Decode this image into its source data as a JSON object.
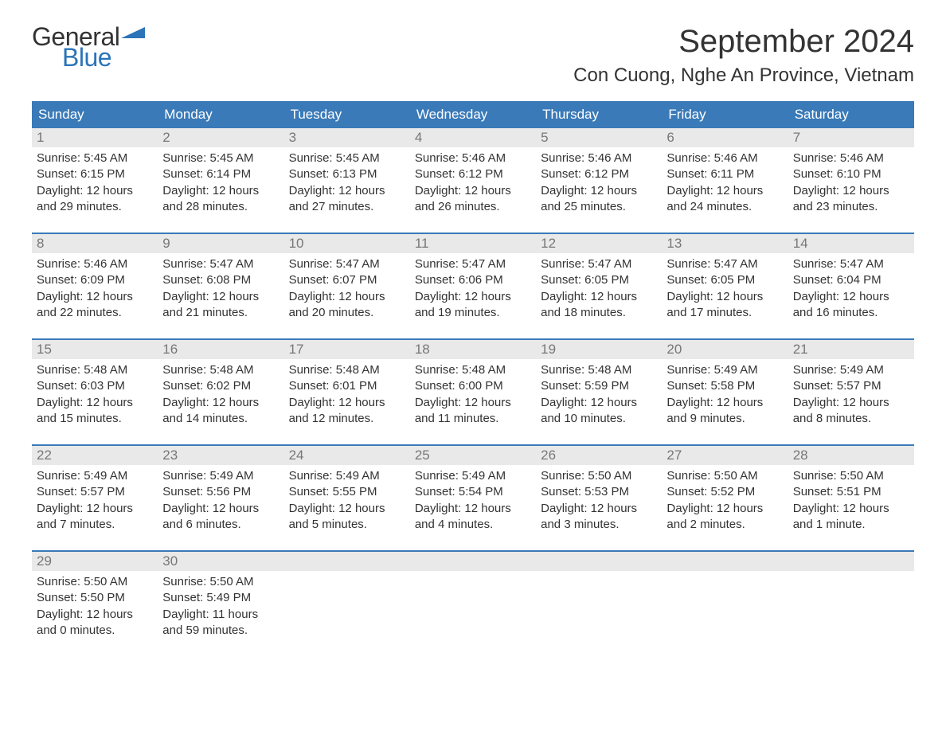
{
  "logo": {
    "text_general": "General",
    "text_blue": "Blue",
    "flag_color": "#2b74b8"
  },
  "title": "September 2024",
  "location": "Con Cuong, Nghe An Province, Vietnam",
  "colors": {
    "header_bg": "#3a7ab8",
    "header_text": "#ffffff",
    "day_bar_bg": "#e9e9e9",
    "day_num_text": "#777777",
    "body_text": "#333333",
    "week_border": "#3a7ab8",
    "background": "#ffffff"
  },
  "day_headers": [
    "Sunday",
    "Monday",
    "Tuesday",
    "Wednesday",
    "Thursday",
    "Friday",
    "Saturday"
  ],
  "weeks": [
    [
      {
        "num": "1",
        "sunrise": "Sunrise: 5:45 AM",
        "sunset": "Sunset: 6:15 PM",
        "daylight1": "Daylight: 12 hours",
        "daylight2": "and 29 minutes."
      },
      {
        "num": "2",
        "sunrise": "Sunrise: 5:45 AM",
        "sunset": "Sunset: 6:14 PM",
        "daylight1": "Daylight: 12 hours",
        "daylight2": "and 28 minutes."
      },
      {
        "num": "3",
        "sunrise": "Sunrise: 5:45 AM",
        "sunset": "Sunset: 6:13 PM",
        "daylight1": "Daylight: 12 hours",
        "daylight2": "and 27 minutes."
      },
      {
        "num": "4",
        "sunrise": "Sunrise: 5:46 AM",
        "sunset": "Sunset: 6:12 PM",
        "daylight1": "Daylight: 12 hours",
        "daylight2": "and 26 minutes."
      },
      {
        "num": "5",
        "sunrise": "Sunrise: 5:46 AM",
        "sunset": "Sunset: 6:12 PM",
        "daylight1": "Daylight: 12 hours",
        "daylight2": "and 25 minutes."
      },
      {
        "num": "6",
        "sunrise": "Sunrise: 5:46 AM",
        "sunset": "Sunset: 6:11 PM",
        "daylight1": "Daylight: 12 hours",
        "daylight2": "and 24 minutes."
      },
      {
        "num": "7",
        "sunrise": "Sunrise: 5:46 AM",
        "sunset": "Sunset: 6:10 PM",
        "daylight1": "Daylight: 12 hours",
        "daylight2": "and 23 minutes."
      }
    ],
    [
      {
        "num": "8",
        "sunrise": "Sunrise: 5:46 AM",
        "sunset": "Sunset: 6:09 PM",
        "daylight1": "Daylight: 12 hours",
        "daylight2": "and 22 minutes."
      },
      {
        "num": "9",
        "sunrise": "Sunrise: 5:47 AM",
        "sunset": "Sunset: 6:08 PM",
        "daylight1": "Daylight: 12 hours",
        "daylight2": "and 21 minutes."
      },
      {
        "num": "10",
        "sunrise": "Sunrise: 5:47 AM",
        "sunset": "Sunset: 6:07 PM",
        "daylight1": "Daylight: 12 hours",
        "daylight2": "and 20 minutes."
      },
      {
        "num": "11",
        "sunrise": "Sunrise: 5:47 AM",
        "sunset": "Sunset: 6:06 PM",
        "daylight1": "Daylight: 12 hours",
        "daylight2": "and 19 minutes."
      },
      {
        "num": "12",
        "sunrise": "Sunrise: 5:47 AM",
        "sunset": "Sunset: 6:05 PM",
        "daylight1": "Daylight: 12 hours",
        "daylight2": "and 18 minutes."
      },
      {
        "num": "13",
        "sunrise": "Sunrise: 5:47 AM",
        "sunset": "Sunset: 6:05 PM",
        "daylight1": "Daylight: 12 hours",
        "daylight2": "and 17 minutes."
      },
      {
        "num": "14",
        "sunrise": "Sunrise: 5:47 AM",
        "sunset": "Sunset: 6:04 PM",
        "daylight1": "Daylight: 12 hours",
        "daylight2": "and 16 minutes."
      }
    ],
    [
      {
        "num": "15",
        "sunrise": "Sunrise: 5:48 AM",
        "sunset": "Sunset: 6:03 PM",
        "daylight1": "Daylight: 12 hours",
        "daylight2": "and 15 minutes."
      },
      {
        "num": "16",
        "sunrise": "Sunrise: 5:48 AM",
        "sunset": "Sunset: 6:02 PM",
        "daylight1": "Daylight: 12 hours",
        "daylight2": "and 14 minutes."
      },
      {
        "num": "17",
        "sunrise": "Sunrise: 5:48 AM",
        "sunset": "Sunset: 6:01 PM",
        "daylight1": "Daylight: 12 hours",
        "daylight2": "and 12 minutes."
      },
      {
        "num": "18",
        "sunrise": "Sunrise: 5:48 AM",
        "sunset": "Sunset: 6:00 PM",
        "daylight1": "Daylight: 12 hours",
        "daylight2": "and 11 minutes."
      },
      {
        "num": "19",
        "sunrise": "Sunrise: 5:48 AM",
        "sunset": "Sunset: 5:59 PM",
        "daylight1": "Daylight: 12 hours",
        "daylight2": "and 10 minutes."
      },
      {
        "num": "20",
        "sunrise": "Sunrise: 5:49 AM",
        "sunset": "Sunset: 5:58 PM",
        "daylight1": "Daylight: 12 hours",
        "daylight2": "and 9 minutes."
      },
      {
        "num": "21",
        "sunrise": "Sunrise: 5:49 AM",
        "sunset": "Sunset: 5:57 PM",
        "daylight1": "Daylight: 12 hours",
        "daylight2": "and 8 minutes."
      }
    ],
    [
      {
        "num": "22",
        "sunrise": "Sunrise: 5:49 AM",
        "sunset": "Sunset: 5:57 PM",
        "daylight1": "Daylight: 12 hours",
        "daylight2": "and 7 minutes."
      },
      {
        "num": "23",
        "sunrise": "Sunrise: 5:49 AM",
        "sunset": "Sunset: 5:56 PM",
        "daylight1": "Daylight: 12 hours",
        "daylight2": "and 6 minutes."
      },
      {
        "num": "24",
        "sunrise": "Sunrise: 5:49 AM",
        "sunset": "Sunset: 5:55 PM",
        "daylight1": "Daylight: 12 hours",
        "daylight2": "and 5 minutes."
      },
      {
        "num": "25",
        "sunrise": "Sunrise: 5:49 AM",
        "sunset": "Sunset: 5:54 PM",
        "daylight1": "Daylight: 12 hours",
        "daylight2": "and 4 minutes."
      },
      {
        "num": "26",
        "sunrise": "Sunrise: 5:50 AM",
        "sunset": "Sunset: 5:53 PM",
        "daylight1": "Daylight: 12 hours",
        "daylight2": "and 3 minutes."
      },
      {
        "num": "27",
        "sunrise": "Sunrise: 5:50 AM",
        "sunset": "Sunset: 5:52 PM",
        "daylight1": "Daylight: 12 hours",
        "daylight2": "and 2 minutes."
      },
      {
        "num": "28",
        "sunrise": "Sunrise: 5:50 AM",
        "sunset": "Sunset: 5:51 PM",
        "daylight1": "Daylight: 12 hours",
        "daylight2": "and 1 minute."
      }
    ],
    [
      {
        "num": "29",
        "sunrise": "Sunrise: 5:50 AM",
        "sunset": "Sunset: 5:50 PM",
        "daylight1": "Daylight: 12 hours",
        "daylight2": "and 0 minutes."
      },
      {
        "num": "30",
        "sunrise": "Sunrise: 5:50 AM",
        "sunset": "Sunset: 5:49 PM",
        "daylight1": "Daylight: 11 hours",
        "daylight2": "and 59 minutes."
      },
      {
        "empty": true
      },
      {
        "empty": true
      },
      {
        "empty": true
      },
      {
        "empty": true
      },
      {
        "empty": true
      }
    ]
  ]
}
